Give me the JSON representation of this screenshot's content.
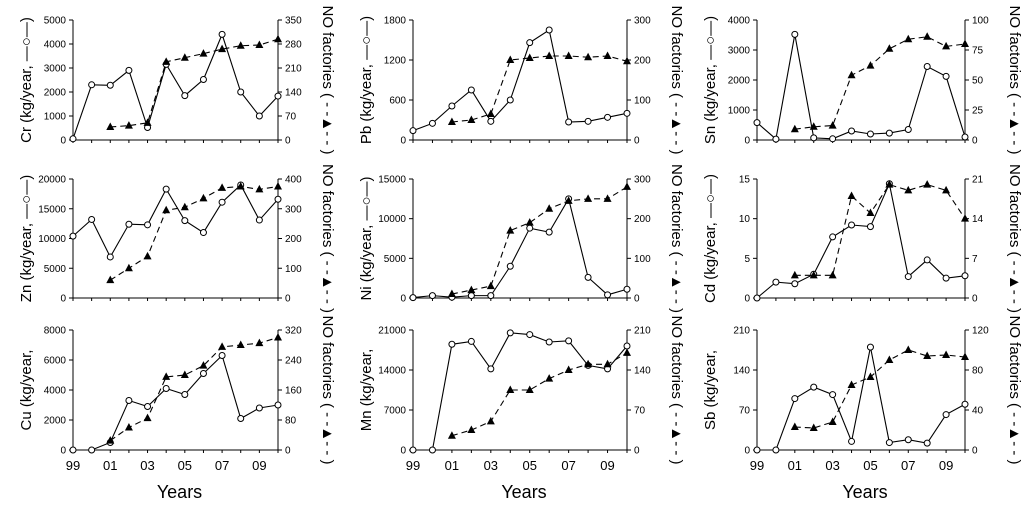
{
  "chart_data": [
    {
      "type": "line",
      "element": "Cr",
      "ylabel": "Cr (kg/year, —○—)",
      "y2label": "NO factories ( - -▲- - )",
      "xlabel": "",
      "ylim": [
        0,
        5000
      ],
      "yticks": [
        0,
        1000,
        2000,
        3000,
        4000,
        5000
      ],
      "y2lim": [
        0,
        350
      ],
      "y2ticks": [
        0,
        70,
        140,
        210,
        280,
        350
      ],
      "series": [
        {
          "name": "emission",
          "style": "solid-circle",
          "x": [
            1999,
            2000,
            2001,
            2002,
            2003,
            2004,
            2005,
            2006,
            2007,
            2008,
            2009,
            2010
          ],
          "values": [
            50,
            2300,
            2280,
            2900,
            520,
            3150,
            1850,
            2520,
            4400,
            2000,
            1000,
            1830
          ]
        },
        {
          "name": "factories",
          "style": "dashed-triangle",
          "axis": "right",
          "x": [
            2001,
            2002,
            2003,
            2004,
            2005,
            2006,
            2007,
            2008,
            2009,
            2010
          ],
          "values": [
            38,
            42,
            50,
            228,
            240,
            252,
            265,
            275,
            277,
            294
          ]
        }
      ]
    },
    {
      "type": "line",
      "element": "Pb",
      "ylabel": "Pb (kg/year, —○—)",
      "y2label": "NO factories ( - -▲- - )",
      "xlabel": "",
      "ylim": [
        0,
        1800
      ],
      "yticks": [
        0,
        600,
        1200,
        1800
      ],
      "y2lim": [
        0,
        300
      ],
      "y2ticks": [
        0,
        100,
        200,
        300
      ],
      "series": [
        {
          "name": "emission",
          "style": "solid-circle",
          "x": [
            1999,
            2000,
            2001,
            2002,
            2003,
            2004,
            2005,
            2006,
            2007,
            2008,
            2009,
            2010
          ],
          "values": [
            140,
            250,
            510,
            750,
            280,
            600,
            1460,
            1650,
            270,
            280,
            340,
            400
          ]
        },
        {
          "name": "factories",
          "style": "dashed-triangle",
          "axis": "right",
          "x": [
            2001,
            2002,
            2003,
            2004,
            2005,
            2006,
            2007,
            2008,
            2009,
            2010
          ],
          "values": [
            45,
            50,
            65,
            200,
            205,
            210,
            210,
            207,
            210,
            197
          ]
        }
      ]
    },
    {
      "type": "line",
      "element": "Sn",
      "ylabel": "Sn (kg/year, —○—)",
      "y2label": "NO factories ( - -▲- - )",
      "xlabel": "",
      "ylim": [
        0,
        4000
      ],
      "yticks": [
        0,
        1000,
        2000,
        3000,
        4000
      ],
      "y2lim": [
        0,
        100
      ],
      "y2ticks": [
        0,
        25,
        50,
        75,
        100
      ],
      "series": [
        {
          "name": "emission",
          "style": "solid-circle",
          "x": [
            1999,
            2000,
            2001,
            2002,
            2003,
            2004,
            2005,
            2006,
            2007,
            2008,
            2009,
            2010
          ],
          "values": [
            580,
            30,
            3520,
            70,
            40,
            300,
            200,
            230,
            350,
            2450,
            2120,
            100
          ]
        },
        {
          "name": "factories",
          "style": "dashed-triangle",
          "axis": "right",
          "x": [
            2001,
            2002,
            2003,
            2004,
            2005,
            2006,
            2007,
            2008,
            2009,
            2010
          ],
          "values": [
            9,
            11,
            12,
            54,
            62,
            76,
            84,
            86,
            78,
            80
          ]
        }
      ]
    },
    {
      "type": "line",
      "element": "Zn",
      "ylabel": "Zn (kg/year, —○—)",
      "y2label": "NO factories ( - -▲- - )",
      "xlabel": "",
      "ylim": [
        0,
        20000
      ],
      "yticks": [
        0,
        5000,
        10000,
        15000,
        20000
      ],
      "y2lim": [
        0,
        400
      ],
      "y2ticks": [
        0,
        100,
        200,
        300,
        400
      ],
      "series": [
        {
          "name": "emission",
          "style": "solid-circle",
          "x": [
            1999,
            2000,
            2001,
            2002,
            2003,
            2004,
            2005,
            2006,
            2007,
            2008,
            2009,
            2010
          ],
          "values": [
            10400,
            13200,
            6900,
            12400,
            12300,
            18300,
            13000,
            11000,
            16100,
            19000,
            13100,
            16600
          ]
        },
        {
          "name": "factories",
          "style": "dashed-triangle",
          "axis": "right",
          "x": [
            2001,
            2002,
            2003,
            2004,
            2005,
            2006,
            2007,
            2008,
            2009,
            2010
          ],
          "values": [
            60,
            100,
            140,
            295,
            305,
            335,
            370,
            375,
            365,
            375
          ]
        }
      ]
    },
    {
      "type": "line",
      "element": "Ni",
      "ylabel": "Ni (kg/year, —○—)",
      "y2label": "NO factories ( - -▲- - )",
      "xlabel": "",
      "ylim": [
        0,
        15000
      ],
      "yticks": [
        0,
        5000,
        10000,
        15000
      ],
      "y2lim": [
        0,
        300
      ],
      "y2ticks": [
        0,
        100,
        200,
        300
      ],
      "series": [
        {
          "name": "emission",
          "style": "solid-circle",
          "x": [
            1999,
            2000,
            2001,
            2002,
            2003,
            2004,
            2005,
            2006,
            2007,
            2008,
            2009,
            2010
          ],
          "values": [
            50,
            300,
            100,
            300,
            300,
            4000,
            8800,
            8300,
            12500,
            2600,
            400,
            1100
          ]
        },
        {
          "name": "factories",
          "style": "dashed-triangle",
          "axis": "right",
          "x": [
            2001,
            2002,
            2003,
            2004,
            2005,
            2006,
            2007,
            2008,
            2009,
            2010
          ],
          "values": [
            10,
            20,
            30,
            170,
            190,
            225,
            245,
            250,
            250,
            280
          ]
        }
      ]
    },
    {
      "type": "line",
      "element": "Cd",
      "ylabel": "Cd (kg/year, —○—)",
      "y2label": "NO factories ( - -▲- - )",
      "xlabel": "",
      "ylim": [
        0,
        15
      ],
      "yticks": [
        0,
        5,
        10,
        15
      ],
      "y2lim": [
        0,
        21
      ],
      "y2ticks": [
        0,
        7,
        14,
        21
      ],
      "series": [
        {
          "name": "emission",
          "style": "solid-circle",
          "x": [
            1999,
            2000,
            2001,
            2002,
            2003,
            2004,
            2005,
            2006,
            2007,
            2008,
            2009,
            2010
          ],
          "values": [
            0,
            2.0,
            1.8,
            3.0,
            7.7,
            9.2,
            9.0,
            14.4,
            2.7,
            4.8,
            2.5,
            2.8
          ]
        },
        {
          "name": "factories",
          "style": "dashed-triangle",
          "axis": "right",
          "x": [
            2001,
            2002,
            2003,
            2004,
            2005,
            2006,
            2007,
            2008,
            2009,
            2010
          ],
          "values": [
            4,
            4,
            4,
            18,
            15,
            20,
            19,
            20,
            19,
            14
          ]
        }
      ]
    },
    {
      "type": "line",
      "element": "Cu",
      "ylabel": "Cu (kg/year,",
      "y2label": "NO factories ( - -▲- - )",
      "xlabel": "Years",
      "ylim": [
        0,
        8000
      ],
      "yticks": [
        0,
        2000,
        4000,
        6000,
        8000
      ],
      "y2lim": [
        0,
        320
      ],
      "y2ticks": [
        0,
        80,
        160,
        240,
        320
      ],
      "series": [
        {
          "name": "emission",
          "style": "solid-circle",
          "x": [
            1999,
            2000,
            2001,
            2002,
            2003,
            2004,
            2005,
            2006,
            2007,
            2008,
            2009,
            2010
          ],
          "values": [
            0,
            0,
            500,
            3300,
            2900,
            4100,
            3700,
            5100,
            6300,
            2100,
            2800,
            3000
          ]
        },
        {
          "name": "factories",
          "style": "dashed-triangle",
          "axis": "right",
          "x": [
            2001,
            2002,
            2003,
            2004,
            2005,
            2006,
            2007,
            2008,
            2009,
            2010
          ],
          "values": [
            25,
            60,
            85,
            195,
            200,
            225,
            275,
            280,
            285,
            300
          ]
        }
      ]
    },
    {
      "type": "line",
      "element": "Mn",
      "ylabel": "Mn (kg/year,",
      "y2label": "NO factories ( - -▲- - )",
      "xlabel": "Years",
      "ylim": [
        0,
        21000
      ],
      "yticks": [
        0,
        7000,
        14000,
        21000
      ],
      "y2lim": [
        0,
        210
      ],
      "y2ticks": [
        0,
        70,
        140,
        210
      ],
      "series": [
        {
          "name": "emission",
          "style": "solid-circle",
          "x": [
            1999,
            2000,
            2001,
            2002,
            2003,
            2004,
            2005,
            2006,
            2007,
            2008,
            2009,
            2010
          ],
          "values": [
            0,
            0,
            18500,
            19000,
            14200,
            20500,
            20200,
            18900,
            19100,
            14800,
            14200,
            18200
          ]
        },
        {
          "name": "factories",
          "style": "dashed-triangle",
          "axis": "right",
          "x": [
            2001,
            2002,
            2003,
            2004,
            2005,
            2006,
            2007,
            2008,
            2009,
            2010
          ],
          "values": [
            25,
            35,
            50,
            105,
            105,
            125,
            140,
            150,
            150,
            170
          ]
        }
      ]
    },
    {
      "type": "line",
      "element": "Sb",
      "ylabel": "Sb (kg/year,",
      "y2label": "NO factories ( - -▲- - )",
      "xlabel": "Years",
      "ylim": [
        0,
        210
      ],
      "yticks": [
        0,
        70,
        140,
        210
      ],
      "y2lim": [
        0,
        120
      ],
      "y2ticks": [
        0,
        40,
        80,
        120
      ],
      "series": [
        {
          "name": "emission",
          "style": "solid-circle",
          "x": [
            1999,
            2000,
            2001,
            2002,
            2003,
            2004,
            2005,
            2006,
            2007,
            2008,
            2009,
            2010
          ],
          "values": [
            0,
            0,
            90,
            110,
            97,
            15,
            180,
            13,
            18,
            12,
            62,
            80
          ]
        },
        {
          "name": "factories",
          "style": "dashed-triangle",
          "axis": "right",
          "x": [
            2001,
            2002,
            2003,
            2004,
            2005,
            2006,
            2007,
            2008,
            2009,
            2010
          ],
          "values": [
            23,
            22,
            28,
            65,
            73,
            90,
            100,
            94,
            95,
            93
          ]
        }
      ]
    }
  ],
  "x_ticks": {
    "values": [
      1999,
      2001,
      2003,
      2005,
      2007,
      2009
    ],
    "labels": [
      "99",
      "01",
      "03",
      "05",
      "07",
      "09"
    ]
  },
  "styles": {
    "line_color": "#000000",
    "marker_fill_open": "#ffffff"
  }
}
